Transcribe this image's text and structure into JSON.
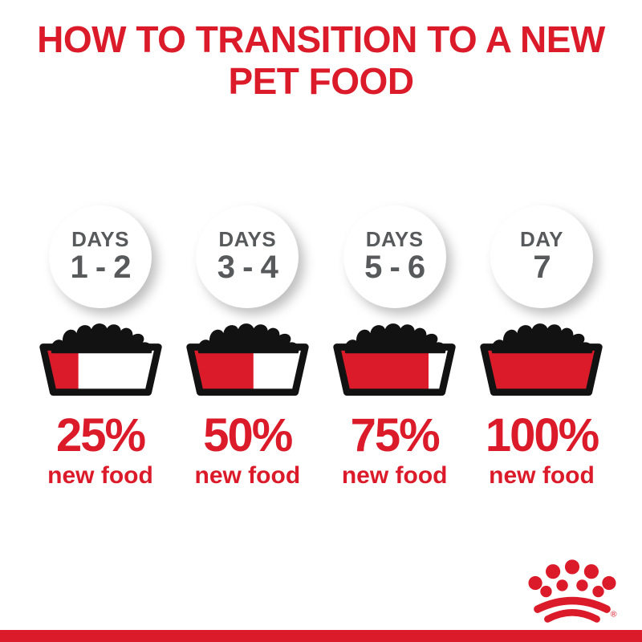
{
  "title": {
    "line1": "HOW TO TRANSITION TO A NEW",
    "line2": "PET FOOD"
  },
  "columns": [
    {
      "day_label": "DAYS",
      "day_range": "1 - 2",
      "percent": "25%",
      "caption": "new food",
      "new_food_pct": 25
    },
    {
      "day_label": "DAYS",
      "day_range": "3 - 4",
      "percent": "50%",
      "caption": "new food",
      "new_food_pct": 50
    },
    {
      "day_label": "DAYS",
      "day_range": "5 - 6",
      "percent": "75%",
      "caption": "new food",
      "new_food_pct": 75
    },
    {
      "day_label": "DAY",
      "day_range": "7",
      "percent": "100%",
      "caption": "new food",
      "new_food_pct": 100
    }
  ],
  "logo": {
    "name": "royal-canin-crown",
    "registered_mark": "®"
  },
  "colors": {
    "brand_red": "#DC1B2A",
    "day_text_gray": "#58595B",
    "bowl_black": "#121212"
  }
}
